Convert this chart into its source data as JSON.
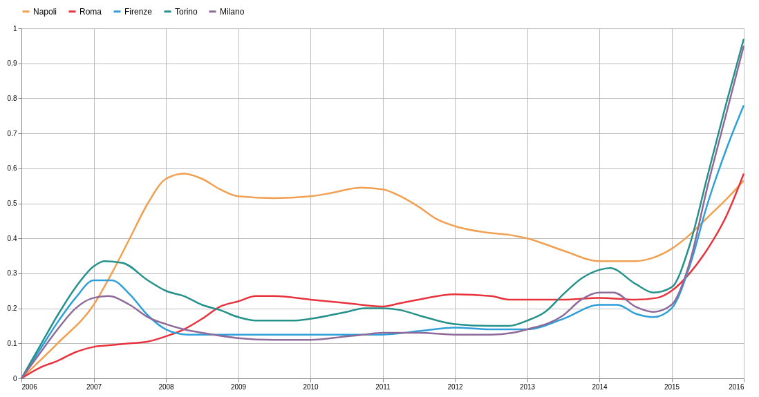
{
  "chart_data": {
    "type": "line",
    "legend": "top",
    "grid": true,
    "marker": "none",
    "line_style": "solid",
    "xlim": [
      2006,
      2016
    ],
    "xticks": [
      2006,
      2007,
      2008,
      2009,
      2010,
      2011,
      2012,
      2013,
      2014,
      2015,
      2016
    ],
    "ylim": [
      0,
      1
    ],
    "yticks": [
      0,
      0.1,
      0.2,
      0.3,
      0.4,
      0.5,
      0.6,
      0.7,
      0.8,
      0.9,
      1
    ],
    "series": [
      {
        "name": "Napoli",
        "color": "#f0a050",
        "x": [
          2006,
          2006.5,
          2007,
          2007.25,
          2007.5,
          2007.75,
          2008,
          2008.25,
          2008.5,
          2008.75,
          2009,
          2009.5,
          2010,
          2010.3,
          2010.7,
          2011,
          2011.25,
          2011.5,
          2011.75,
          2012,
          2012.5,
          2012.75,
          2013,
          2013.5,
          2014,
          2014.5,
          2014.75,
          2015,
          2015.25,
          2015.5,
          2015.75,
          2016
        ],
        "values": [
          0,
          0.1,
          0.21,
          0.3,
          0.4,
          0.5,
          0.57,
          0.585,
          0.57,
          0.54,
          0.52,
          0.515,
          0.52,
          0.53,
          0.545,
          0.54,
          0.52,
          0.49,
          0.455,
          0.435,
          0.415,
          0.41,
          0.4,
          0.365,
          0.335,
          0.335,
          0.345,
          0.37,
          0.41,
          0.46,
          0.51,
          0.565
        ]
      },
      {
        "name": "Roma",
        "color": "#e8323c",
        "x": [
          2006,
          2006.25,
          2006.5,
          2006.75,
          2007,
          2007.25,
          2007.5,
          2007.75,
          2008,
          2008.25,
          2008.5,
          2008.75,
          2009,
          2009.25,
          2009.5,
          2010,
          2010.5,
          2011,
          2011.25,
          2011.5,
          2012,
          2012.5,
          2012.75,
          2013,
          2013.5,
          2014,
          2014.5,
          2014.8,
          2015,
          2015.25,
          2015.5,
          2015.75,
          2016
        ],
        "values": [
          0,
          0.03,
          0.05,
          0.075,
          0.09,
          0.095,
          0.1,
          0.105,
          0.12,
          0.14,
          0.17,
          0.205,
          0.22,
          0.235,
          0.235,
          0.225,
          0.215,
          0.205,
          0.215,
          0.225,
          0.24,
          0.235,
          0.225,
          0.225,
          0.225,
          0.23,
          0.225,
          0.23,
          0.25,
          0.3,
          0.37,
          0.46,
          0.585
        ]
      },
      {
        "name": "Firenze",
        "color": "#2e9fd8",
        "x": [
          2006,
          2006.25,
          2006.5,
          2006.75,
          2007,
          2007.25,
          2007.5,
          2007.75,
          2008,
          2008.3,
          2009,
          2010,
          2011,
          2011.5,
          2012,
          2012.5,
          2013,
          2013.5,
          2014,
          2014.25,
          2014.5,
          2014.75,
          2015,
          2015.25,
          2015.5,
          2015.75,
          2016
        ],
        "values": [
          0,
          0.08,
          0.16,
          0.23,
          0.28,
          0.28,
          0.24,
          0.18,
          0.14,
          0.125,
          0.125,
          0.125,
          0.125,
          0.135,
          0.145,
          0.14,
          0.14,
          0.17,
          0.21,
          0.21,
          0.185,
          0.175,
          0.2,
          0.32,
          0.5,
          0.65,
          0.78
        ]
      },
      {
        "name": "Torino",
        "color": "#24918a",
        "x": [
          2006,
          2006.25,
          2006.5,
          2006.75,
          2007,
          2007.15,
          2007.4,
          2007.75,
          2008,
          2008.25,
          2008.5,
          2008.75,
          2009,
          2009.25,
          2009.75,
          2010,
          2010.5,
          2010.75,
          2011,
          2011.25,
          2011.5,
          2012,
          2012.5,
          2012.75,
          2013,
          2013.25,
          2013.5,
          2013.75,
          2014,
          2014.15,
          2014.5,
          2014.75,
          2015,
          2015.25,
          2015.5,
          2015.75,
          2016
        ],
        "values": [
          0,
          0.09,
          0.18,
          0.26,
          0.32,
          0.335,
          0.33,
          0.28,
          0.25,
          0.235,
          0.21,
          0.195,
          0.175,
          0.165,
          0.165,
          0.17,
          0.19,
          0.2,
          0.2,
          0.195,
          0.18,
          0.155,
          0.15,
          0.15,
          0.165,
          0.19,
          0.24,
          0.285,
          0.31,
          0.315,
          0.27,
          0.245,
          0.26,
          0.38,
          0.58,
          0.78,
          0.97
        ]
      },
      {
        "name": "Milano",
        "color": "#8e6a9a",
        "x": [
          2006,
          2006.25,
          2006.5,
          2006.75,
          2007,
          2007.2,
          2007.5,
          2007.75,
          2008,
          2008.25,
          2008.5,
          2009,
          2009.5,
          2010,
          2010.5,
          2010.75,
          2011,
          2011.5,
          2012,
          2012.5,
          2012.8,
          2013,
          2013.5,
          2013.75,
          2014,
          2014.2,
          2014.5,
          2014.75,
          2015,
          2015.25,
          2015.5,
          2015.75,
          2016
        ],
        "values": [
          0,
          0.07,
          0.14,
          0.2,
          0.23,
          0.235,
          0.21,
          0.175,
          0.155,
          0.14,
          0.13,
          0.115,
          0.11,
          0.11,
          0.12,
          0.125,
          0.13,
          0.13,
          0.125,
          0.125,
          0.13,
          0.14,
          0.18,
          0.225,
          0.245,
          0.245,
          0.205,
          0.19,
          0.21,
          0.33,
          0.55,
          0.75,
          0.95
        ]
      }
    ]
  }
}
